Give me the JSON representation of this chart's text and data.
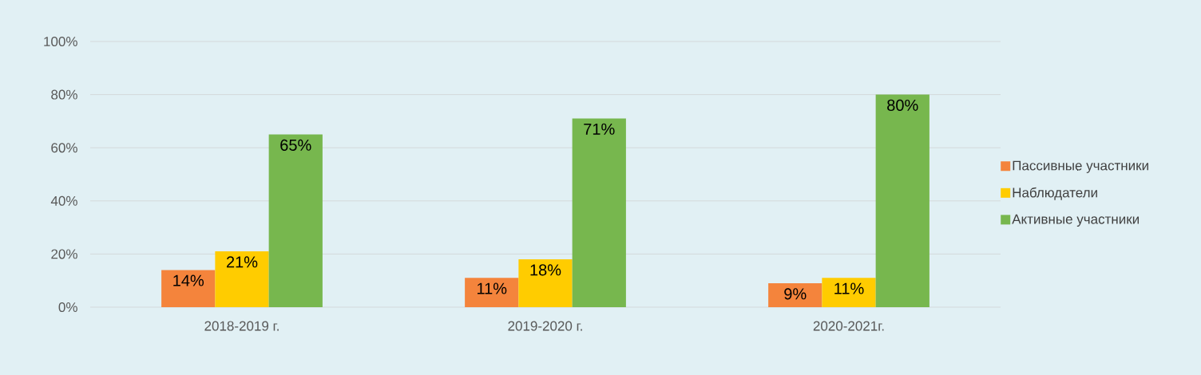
{
  "chart_data": {
    "type": "bar",
    "categories": [
      "2018-2019 г.",
      "2019-2020 г.",
      "2020-2021г."
    ],
    "series": [
      {
        "name": "Пассивные участники",
        "color": "#f4843c",
        "values": [
          14,
          11,
          9
        ],
        "value_labels": [
          "14%",
          "11%",
          "9%"
        ]
      },
      {
        "name": "Наблюдатели",
        "color": "#ffcc00",
        "values": [
          21,
          18,
          11
        ],
        "value_labels": [
          "21%",
          "18%",
          "11%"
        ]
      },
      {
        "name": "Активные участники",
        "color": "#77b74e",
        "values": [
          65,
          71,
          80
        ],
        "value_labels": [
          "65%",
          "71%",
          "80%"
        ]
      }
    ],
    "ylim": [
      0,
      100
    ],
    "yticks": [
      {
        "value": 0,
        "label": "0%"
      },
      {
        "value": 20,
        "label": "20%"
      },
      {
        "value": 40,
        "label": "40%"
      },
      {
        "value": 60,
        "label": "60%"
      },
      {
        "value": 80,
        "label": "80%"
      },
      {
        "value": 100,
        "label": "100%"
      }
    ],
    "grid": "y",
    "legend": "right"
  }
}
